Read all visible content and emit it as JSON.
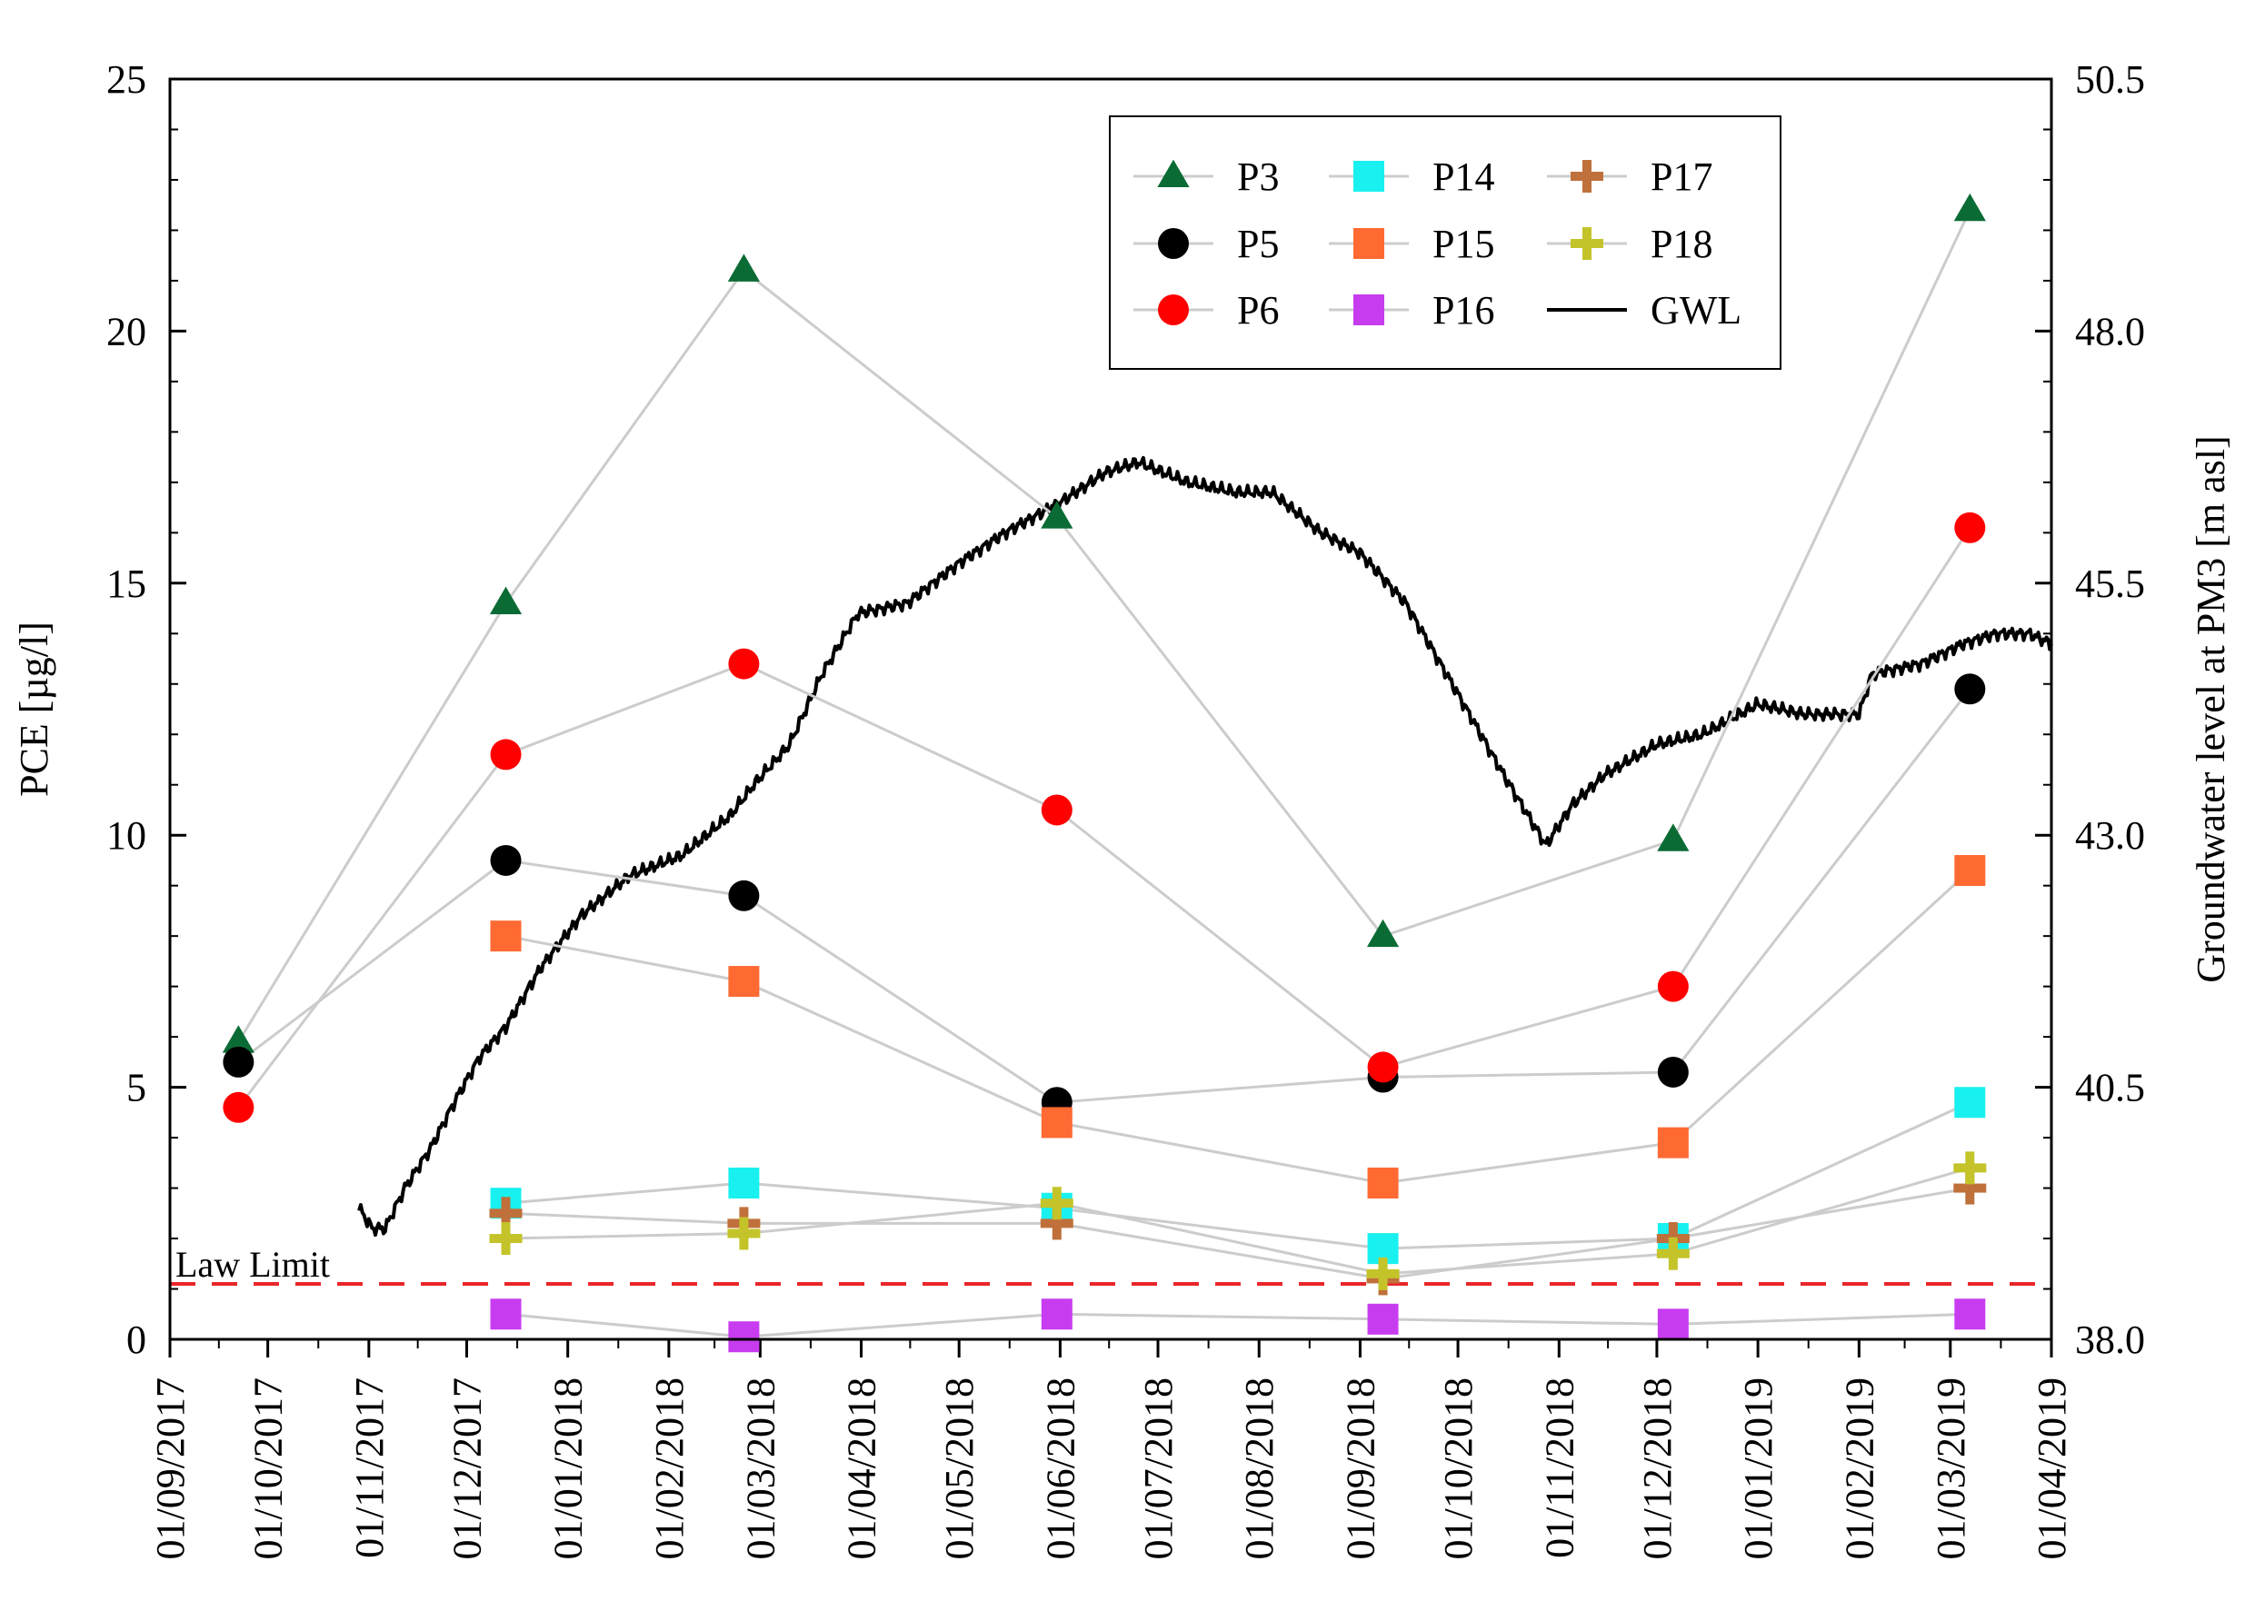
{
  "chart_data": {
    "type": "scatter",
    "title": "",
    "xlabel": "",
    "ylabel": "PCE [µg/l]",
    "y2label": "Groundwater level at PM3 [m asl]",
    "xlim": [
      "2017-09-01",
      "2019-04-01"
    ],
    "ylim": [
      0,
      25
    ],
    "y2lim": [
      38.0,
      50.5
    ],
    "yticks": [
      0,
      5,
      10,
      15,
      20,
      25
    ],
    "y2ticks": [
      "38.0",
      "40.5",
      "43.0",
      "45.5",
      "48.0",
      "50.5"
    ],
    "xtick_labels": [
      "01/09/2017",
      "01/10/2017",
      "01/11/2017",
      "01/12/2017",
      "01/01/2018",
      "01/02/2018",
      "01/03/2018",
      "01/04/2018",
      "01/05/2018",
      "01/06/2018",
      "01/07/2018",
      "01/08/2018",
      "01/09/2018",
      "01/10/2018",
      "01/11/2018",
      "01/12/2018",
      "01/01/2019",
      "01/02/2019",
      "01/03/2019",
      "01/04/2019"
    ],
    "xtick_dates": [
      "2017-09-01",
      "2017-10-01",
      "2017-11-01",
      "2017-12-01",
      "2018-01-01",
      "2018-02-01",
      "2018-03-01",
      "2018-04-01",
      "2018-05-01",
      "2018-06-01",
      "2018-07-01",
      "2018-08-01",
      "2018-09-01",
      "2018-10-01",
      "2018-11-01",
      "2018-12-01",
      "2019-01-01",
      "2019-02-01",
      "2019-03-01",
      "2019-04-01"
    ],
    "law_limit": {
      "label": "Law Limit",
      "value": 1.1,
      "color": "#e8262a"
    },
    "series": [
      {
        "name": "P3",
        "marker": "triangle",
        "color": "#0b6b35",
        "x": [
          "2017-09-22",
          "2017-12-13",
          "2018-02-24",
          "2018-05-31",
          "2018-09-08",
          "2018-12-06",
          "2019-03-07"
        ],
        "values": [
          5.9,
          14.6,
          21.2,
          16.3,
          8.0,
          9.9,
          22.4
        ]
      },
      {
        "name": "P5",
        "marker": "circle",
        "color": "#000000",
        "x": [
          "2017-09-22",
          "2017-12-13",
          "2018-02-24",
          "2018-05-31",
          "2018-09-08",
          "2018-12-06",
          "2019-03-07"
        ],
        "values": [
          5.5,
          9.5,
          8.8,
          4.7,
          5.2,
          5.3,
          12.9
        ]
      },
      {
        "name": "P6",
        "marker": "circle",
        "color": "#ff0000",
        "x": [
          "2017-09-22",
          "2017-12-13",
          "2018-02-24",
          "2018-05-31",
          "2018-09-08",
          "2018-12-06",
          "2019-03-07"
        ],
        "values": [
          4.6,
          11.6,
          13.4,
          10.5,
          5.4,
          7.0,
          16.1
        ]
      },
      {
        "name": "P14",
        "marker": "square",
        "color": "#19f0f0",
        "x": [
          "2017-12-13",
          "2018-02-24",
          "2018-05-31",
          "2018-09-08",
          "2018-12-06",
          "2019-03-07"
        ],
        "values": [
          2.7,
          3.1,
          2.6,
          1.8,
          2.0,
          4.7
        ]
      },
      {
        "name": "P15",
        "marker": "square",
        "color": "#ff6a33",
        "x": [
          "2017-12-13",
          "2018-02-24",
          "2018-05-31",
          "2018-09-08",
          "2018-12-06",
          "2019-03-07"
        ],
        "values": [
          8.0,
          7.1,
          4.3,
          3.1,
          3.9,
          9.3
        ]
      },
      {
        "name": "P16",
        "marker": "square",
        "color": "#c83cf0",
        "x": [
          "2017-12-13",
          "2018-02-24",
          "2018-05-31",
          "2018-09-08",
          "2018-12-06",
          "2019-03-07"
        ],
        "values": [
          0.5,
          0.05,
          0.5,
          0.4,
          0.3,
          0.5
        ]
      },
      {
        "name": "P17",
        "marker": "plus",
        "color": "#c0703a",
        "x": [
          "2017-12-13",
          "2018-02-24",
          "2018-05-31",
          "2018-09-08",
          "2018-12-06",
          "2019-03-07"
        ],
        "values": [
          2.5,
          2.3,
          2.3,
          1.2,
          2.0,
          3.0
        ]
      },
      {
        "name": "P18",
        "marker": "plus",
        "color": "#c4c42a",
        "x": [
          "2017-12-13",
          "2018-02-24",
          "2018-05-31",
          "2018-09-08",
          "2018-12-06",
          "2019-03-07"
        ],
        "values": [
          2.0,
          2.1,
          2.7,
          1.3,
          1.7,
          3.4
        ]
      }
    ],
    "gwl": {
      "name": "GWL",
      "color": "#000000",
      "axis": "right",
      "x": [
        "2017-10-29",
        "2017-11-02",
        "2017-11-06",
        "2017-11-12",
        "2017-11-20",
        "2017-11-28",
        "2017-12-05",
        "2017-12-13",
        "2017-12-24",
        "2018-01-05",
        "2018-01-20",
        "2018-02-05",
        "2018-02-20",
        "2018-02-27",
        "2018-03-10",
        "2018-03-20",
        "2018-03-31",
        "2018-04-15",
        "2018-05-01",
        "2018-05-15",
        "2018-06-01",
        "2018-06-15",
        "2018-06-25",
        "2018-07-10",
        "2018-07-25",
        "2018-08-05",
        "2018-08-20",
        "2018-09-01",
        "2018-09-15",
        "2018-10-01",
        "2018-10-15",
        "2018-10-28",
        "2018-11-05",
        "2018-11-15",
        "2018-12-01",
        "2018-12-15",
        "2019-01-01",
        "2019-01-15",
        "2019-02-01",
        "2019-02-05",
        "2019-02-20",
        "2019-03-05",
        "2019-03-15",
        "2019-03-25",
        "2019-04-01"
      ],
      "values": [
        39.3,
        39.1,
        39.1,
        39.5,
        39.9,
        40.4,
        40.8,
        41.1,
        41.7,
        42.2,
        42.6,
        42.8,
        43.2,
        43.5,
        43.9,
        44.6,
        45.2,
        45.3,
        45.7,
        46.0,
        46.3,
        46.6,
        46.7,
        46.5,
        46.4,
        46.4,
        46.0,
        45.8,
        45.3,
        44.4,
        43.6,
        42.9,
        43.3,
        43.6,
        43.9,
        44.0,
        44.3,
        44.2,
        44.2,
        44.6,
        44.7,
        44.9,
        45.0,
        45.0,
        44.9
      ]
    },
    "legend": {
      "position": "top-center",
      "columns": 3,
      "items": [
        {
          "label": "P3",
          "marker": "triangle",
          "color": "#0b6b35"
        },
        {
          "label": "P5",
          "marker": "circle",
          "color": "#000000"
        },
        {
          "label": "P6",
          "marker": "circle",
          "color": "#ff0000"
        },
        {
          "label": "P14",
          "marker": "square",
          "color": "#19f0f0"
        },
        {
          "label": "P15",
          "marker": "square",
          "color": "#ff6a33"
        },
        {
          "label": "P16",
          "marker": "square",
          "color": "#c83cf0"
        },
        {
          "label": "P17",
          "marker": "plus",
          "color": "#c0703a"
        },
        {
          "label": "P18",
          "marker": "plus",
          "color": "#c4c42a"
        },
        {
          "label": "GWL",
          "marker": "line",
          "color": "#000000"
        }
      ]
    },
    "connector_color": "#cccccc",
    "grid": false
  }
}
